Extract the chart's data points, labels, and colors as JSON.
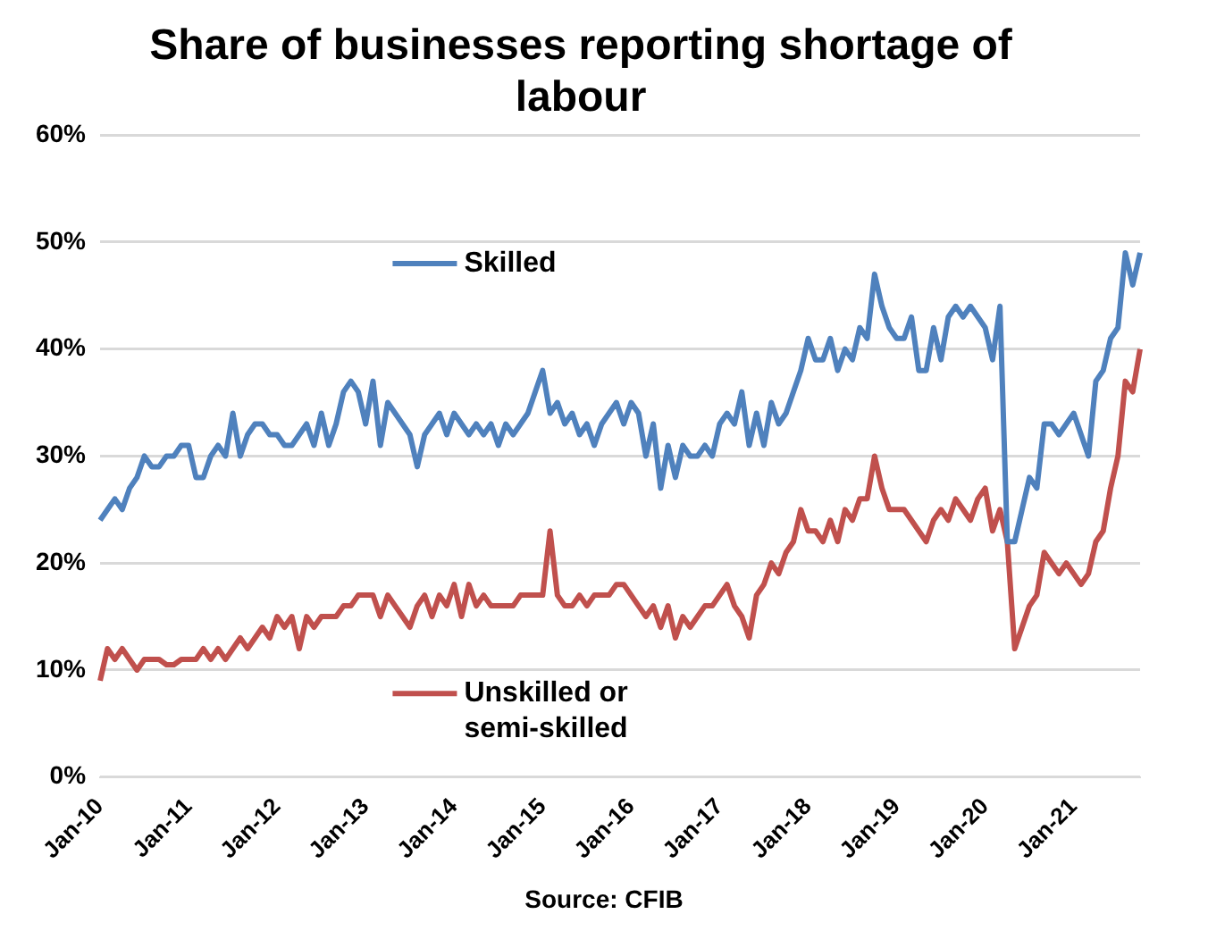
{
  "chart_data": {
    "type": "line",
    "title": "Share of businesses reporting shortage of labour",
    "annotations": [
      "Source: CFIB"
    ],
    "categories": [
      "Jan-10",
      null,
      null,
      null,
      null,
      null,
      null,
      null,
      null,
      null,
      null,
      null,
      "Jan-11",
      null,
      null,
      null,
      null,
      null,
      null,
      null,
      null,
      null,
      null,
      null,
      "Jan-12",
      null,
      null,
      null,
      null,
      null,
      null,
      null,
      null,
      null,
      null,
      null,
      "Jan-13",
      null,
      null,
      null,
      null,
      null,
      null,
      null,
      null,
      null,
      null,
      null,
      "Jan-14",
      null,
      null,
      null,
      null,
      null,
      null,
      null,
      null,
      null,
      null,
      null,
      "Jan-15",
      null,
      null,
      null,
      null,
      null,
      null,
      null,
      null,
      null,
      null,
      null,
      "Jan-16",
      null,
      null,
      null,
      null,
      null,
      null,
      null,
      null,
      null,
      null,
      null,
      "Jan-17",
      null,
      null,
      null,
      null,
      null,
      null,
      null,
      null,
      null,
      null,
      null,
      "Jan-18",
      null,
      null,
      null,
      null,
      null,
      null,
      null,
      null,
      null,
      null,
      null,
      "Jan-19",
      null,
      null,
      null,
      null,
      null,
      null,
      null,
      null,
      null,
      null,
      null,
      "Jan-20",
      null,
      null,
      null,
      null,
      null,
      null,
      null,
      null,
      null,
      null,
      null,
      "Jan-21",
      null,
      null,
      null,
      null,
      null,
      null,
      null,
      null,
      null
    ],
    "series": [
      {
        "name": "Skilled",
        "color": "#4f81bd",
        "values": [
          24,
          25,
          26,
          25,
          27,
          28,
          30,
          29,
          29,
          30,
          30,
          31,
          31,
          28,
          28,
          30,
          31,
          30,
          34,
          30,
          32,
          33,
          33,
          32,
          32,
          31,
          31,
          32,
          33,
          31,
          34,
          31,
          33,
          36,
          37,
          36,
          33,
          37,
          31,
          35,
          34,
          33,
          32,
          29,
          32,
          33,
          34,
          32,
          34,
          33,
          32,
          33,
          32,
          33,
          31,
          33,
          32,
          33,
          34,
          36,
          38,
          34,
          35,
          33,
          34,
          32,
          33,
          31,
          33,
          34,
          35,
          33,
          35,
          34,
          30,
          33,
          27,
          31,
          28,
          31,
          30,
          30,
          31,
          30,
          33,
          34,
          33,
          36,
          31,
          34,
          31,
          35,
          33,
          34,
          36,
          38,
          41,
          39,
          39,
          41,
          38,
          40,
          39,
          42,
          41,
          47,
          44,
          42,
          41,
          41,
          43,
          38,
          38,
          42,
          39,
          43,
          44,
          43,
          44,
          43,
          42,
          39,
          44,
          22,
          22,
          25,
          28,
          27,
          33,
          33,
          32,
          33,
          34,
          32,
          30,
          37,
          38,
          41,
          42,
          49,
          46,
          49
        ]
      },
      {
        "name": "Unskilled or semi-skilled",
        "color": "#c0504d",
        "values": [
          9,
          12,
          11,
          12,
          11,
          10,
          11,
          11,
          11,
          10.5,
          10.5,
          11,
          11,
          11,
          12,
          11,
          12,
          11,
          12,
          13,
          12,
          13,
          14,
          13,
          15,
          14,
          15,
          12,
          15,
          14,
          15,
          15,
          15,
          16,
          16,
          17,
          17,
          17,
          15,
          17,
          16,
          15,
          14,
          16,
          17,
          15,
          17,
          16,
          18,
          15,
          18,
          16,
          17,
          16,
          16,
          16,
          16,
          17,
          17,
          17,
          17,
          23,
          17,
          16,
          16,
          17,
          16,
          17,
          17,
          17,
          18,
          18,
          17,
          16,
          15,
          16,
          14,
          16,
          13,
          15,
          14,
          15,
          16,
          16,
          17,
          18,
          16,
          15,
          13,
          17,
          18,
          20,
          19,
          21,
          22,
          25,
          23,
          23,
          22,
          24,
          22,
          25,
          24,
          26,
          26,
          30,
          27,
          25,
          25,
          25,
          24,
          23,
          22,
          24,
          25,
          24,
          26,
          25,
          24,
          26,
          27,
          23,
          25,
          22,
          12,
          14,
          16,
          17,
          21,
          20,
          19,
          20,
          19,
          18,
          19,
          22,
          23,
          27,
          30,
          37,
          36,
          40
        ]
      }
    ],
    "ylim": [
      0,
      60
    ],
    "yticks": [
      {
        "value": 0,
        "label": "0%"
      },
      {
        "value": 10,
        "label": "10%"
      },
      {
        "value": 20,
        "label": "20%"
      },
      {
        "value": 30,
        "label": "30%"
      },
      {
        "value": 40,
        "label": "40%"
      },
      {
        "value": 50,
        "label": "50%"
      },
      {
        "value": 60,
        "label": "60%"
      }
    ],
    "grid": "y",
    "legend": "center",
    "marker": "none",
    "line_style": "solid"
  }
}
